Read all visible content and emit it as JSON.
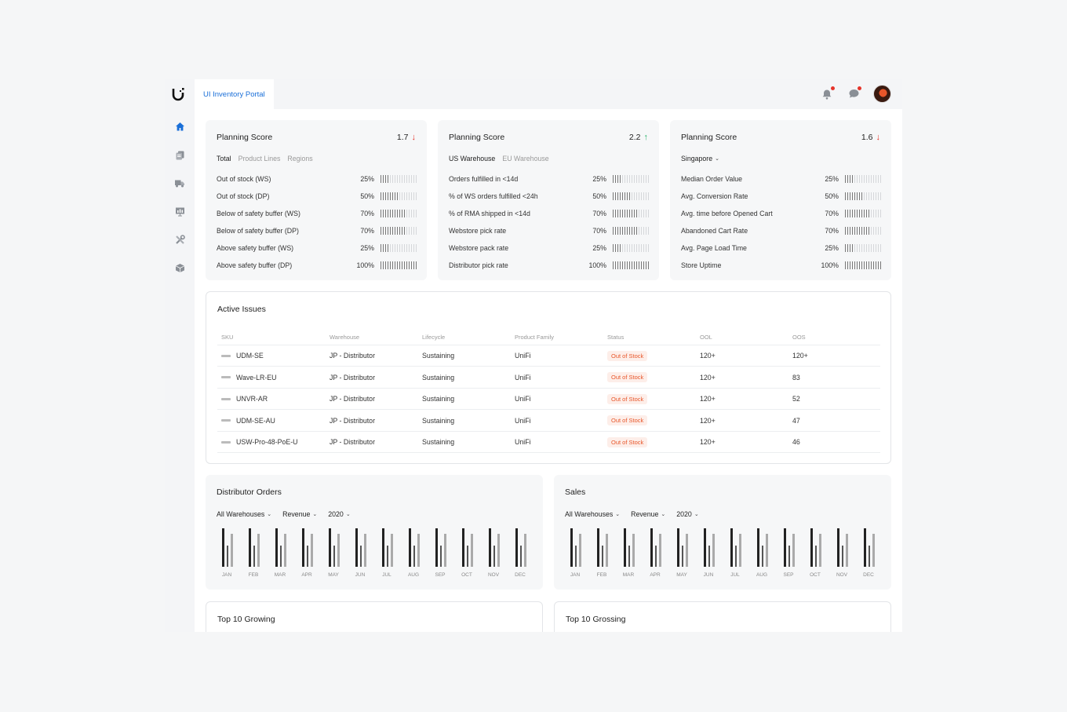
{
  "app": {
    "title": "UI Inventory Portal"
  },
  "icons": {
    "logo": "ubiquiti-logo",
    "notifications": "bell-icon",
    "messages": "chat-icon",
    "sidebar": [
      "home-icon",
      "documents-icon",
      "truck-icon",
      "presentation-icon",
      "tools-icon",
      "box-icon"
    ]
  },
  "colors": {
    "accent": "#1a6fd8",
    "down": "#e5342a",
    "up": "#2db36c",
    "status": "#e8562a"
  },
  "planning": [
    {
      "title": "Planning Score",
      "score": "1.7",
      "trend": "down",
      "filters": [
        {
          "label": "Total",
          "active": true
        },
        {
          "label": "Product Lines",
          "active": false
        },
        {
          "label": "Regions",
          "active": false
        }
      ],
      "metrics": [
        {
          "label": "Out of stock (WS)",
          "pct": "25%",
          "level": 0.25
        },
        {
          "label": "Out of stock (DP)",
          "pct": "50%",
          "level": 0.5
        },
        {
          "label": "Below of safety buffer (WS)",
          "pct": "70%",
          "level": 0.7
        },
        {
          "label": "Below of safety buffer (DP)",
          "pct": "70%",
          "level": 0.7
        },
        {
          "label": "Above safety buffer (WS)",
          "pct": "25%",
          "level": 0.25
        },
        {
          "label": "Above safety buffer (DP)",
          "pct": "100%",
          "level": 1.0
        }
      ]
    },
    {
      "title": "Planning Score",
      "score": "2.2",
      "trend": "up",
      "filters": [
        {
          "label": "US Warehouse",
          "active": true
        },
        {
          "label": "EU Warehouse",
          "active": false
        }
      ],
      "metrics": [
        {
          "label": "Orders fulfilled in <14d",
          "pct": "25%",
          "level": 0.25
        },
        {
          "label": "% of WS orders fulfilled <24h",
          "pct": "50%",
          "level": 0.5
        },
        {
          "label": "% of RMA shipped in <14d",
          "pct": "70%",
          "level": 0.7
        },
        {
          "label": "Webstore pick rate",
          "pct": "70%",
          "level": 0.7
        },
        {
          "label": "Webstore pack rate",
          "pct": "25%",
          "level": 0.25
        },
        {
          "label": "Distributor pick rate",
          "pct": "100%",
          "level": 1.0
        }
      ]
    },
    {
      "title": "Planning Score",
      "score": "1.6",
      "trend": "down",
      "region": "Singapore",
      "metrics": [
        {
          "label": "Median Order Value",
          "pct": "25%",
          "level": 0.25
        },
        {
          "label": "Avg. Conversion Rate",
          "pct": "50%",
          "level": 0.5
        },
        {
          "label": "Avg. time before Opened Cart",
          "pct": "70%",
          "level": 0.7
        },
        {
          "label": "Abandoned Cart Rate",
          "pct": "70%",
          "level": 0.7
        },
        {
          "label": "Avg. Page Load Time",
          "pct": "25%",
          "level": 0.25
        },
        {
          "label": "Store Uptime",
          "pct": "100%",
          "level": 1.0
        }
      ]
    }
  ],
  "issues": {
    "title": "Active Issues",
    "columns": [
      "SKU",
      "Warehouse",
      "Lifecycle",
      "Product Family",
      "Status",
      "OOL",
      "OOS"
    ],
    "rows": [
      {
        "sku": "UDM-SE",
        "warehouse": "JP - Distributor",
        "lifecycle": "Sustaining",
        "family": "UniFi",
        "status": "Out of Stock",
        "ool": "120+",
        "oos": "120+"
      },
      {
        "sku": "Wave-LR-EU",
        "warehouse": "JP - Distributor",
        "lifecycle": "Sustaining",
        "family": "UniFi",
        "status": "Out of Stock",
        "ool": "120+",
        "oos": "83"
      },
      {
        "sku": "UNVR-AR",
        "warehouse": "JP - Distributor",
        "lifecycle": "Sustaining",
        "family": "UniFi",
        "status": "Out of Stock",
        "ool": "120+",
        "oos": "52"
      },
      {
        "sku": "UDM-SE-AU",
        "warehouse": "JP - Distributor",
        "lifecycle": "Sustaining",
        "family": "UniFi",
        "status": "Out of Stock",
        "ool": "120+",
        "oos": "47"
      },
      {
        "sku": "USW-Pro-48-PoE-U",
        "warehouse": "JP - Distributor",
        "lifecycle": "Sustaining",
        "family": "UniFi",
        "status": "Out of Stock",
        "ool": "120+",
        "oos": "46"
      }
    ]
  },
  "distributor": {
    "title": "Distributor Orders",
    "warehouse": "All Warehouses",
    "metric": "Revenue",
    "year": "2020"
  },
  "sales": {
    "title": "Sales",
    "warehouse": "All Warehouses",
    "metric": "Revenue",
    "year": "2020"
  },
  "chart_data": [
    {
      "type": "bar",
      "title": "Distributor Orders",
      "categories": [
        "JAN",
        "FEB",
        "MAR",
        "APR",
        "MAY",
        "JUN",
        "JUL",
        "AUG",
        "SEP",
        "OCT",
        "NOV",
        "DEC"
      ],
      "series": [
        {
          "values": [
            1.0,
            1.0,
            1.0,
            1.0,
            1.0,
            1.0,
            1.0,
            1.0,
            1.0,
            1.0,
            1.0,
            1.0
          ],
          "color": "#222222"
        },
        {
          "values": [
            0.55,
            0.55,
            0.55,
            0.55,
            0.55,
            0.55,
            0.55,
            0.55,
            0.55,
            0.55,
            0.55,
            0.55
          ],
          "color": "#555555"
        },
        {
          "values": [
            0.85,
            0.85,
            0.85,
            0.85,
            0.85,
            0.85,
            0.85,
            0.85,
            0.85,
            0.85,
            0.85,
            0.85
          ],
          "color": "#aaaaaa"
        }
      ]
    },
    {
      "type": "bar",
      "title": "Sales",
      "categories": [
        "JAN",
        "FEB",
        "MAR",
        "APR",
        "MAY",
        "JUN",
        "JUL",
        "AUG",
        "SEP",
        "OCT",
        "NOV",
        "DEC"
      ],
      "series": [
        {
          "values": [
            1.0,
            1.0,
            1.0,
            1.0,
            1.0,
            1.0,
            1.0,
            1.0,
            1.0,
            1.0,
            1.0,
            1.0
          ],
          "color": "#222222"
        },
        {
          "values": [
            0.55,
            0.55,
            0.55,
            0.55,
            0.55,
            0.55,
            0.55,
            0.55,
            0.55,
            0.55,
            0.55,
            0.55
          ],
          "color": "#555555"
        },
        {
          "values": [
            0.85,
            0.85,
            0.85,
            0.85,
            0.85,
            0.85,
            0.85,
            0.85,
            0.85,
            0.85,
            0.85,
            0.85
          ],
          "color": "#aaaaaa"
        }
      ]
    }
  ],
  "growing": {
    "title": "Top 10 Growing"
  },
  "grossing": {
    "title": "Top 10 Grossing"
  }
}
